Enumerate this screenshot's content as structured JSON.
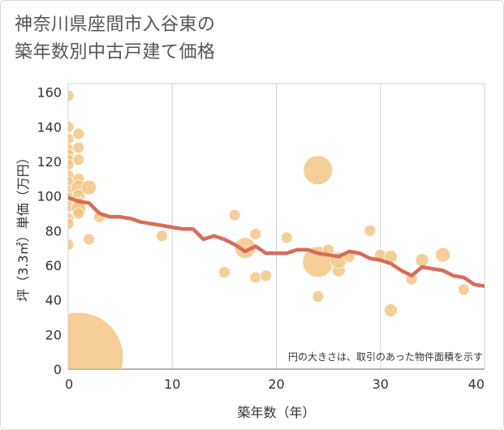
{
  "title_line1": "神奈川県座間市入谷東の",
  "title_line2": "築年数別中古戸建て価格",
  "chart_data": {
    "type": "scatter",
    "title": "神奈川県座間市入谷東の築年数別中古戸建て価格",
    "xlabel": "築年数（年）",
    "ylabel": "坪（3.3㎡）単価（万円）",
    "xlim": [
      0,
      40
    ],
    "ylim": [
      0,
      165
    ],
    "xticks": [
      "0",
      "10",
      "20",
      "30",
      "40"
    ],
    "yticks": [
      "0",
      "20",
      "40",
      "60",
      "80",
      "100",
      "120",
      "140",
      "160"
    ],
    "grid": true,
    "annotation": "円の大きさは、取引のあった物件面積を示す",
    "bubble_color": "#f2c27a",
    "line_color": "#d96b5b",
    "points": [
      {
        "x": 0,
        "y": 158,
        "s": 7
      },
      {
        "x": 0,
        "y": 140,
        "s": 7
      },
      {
        "x": 0,
        "y": 133,
        "s": 7
      },
      {
        "x": 0,
        "y": 127,
        "s": 7
      },
      {
        "x": 0,
        "y": 124,
        "s": 7
      },
      {
        "x": 0,
        "y": 121,
        "s": 7
      },
      {
        "x": 0,
        "y": 118,
        "s": 7
      },
      {
        "x": 0,
        "y": 112,
        "s": 7
      },
      {
        "x": 0,
        "y": 108,
        "s": 7
      },
      {
        "x": 0,
        "y": 103,
        "s": 7
      },
      {
        "x": 0,
        "y": 99,
        "s": 7
      },
      {
        "x": 0,
        "y": 94,
        "s": 7
      },
      {
        "x": 0,
        "y": 87,
        "s": 7
      },
      {
        "x": 0,
        "y": 84,
        "s": 7
      },
      {
        "x": 0,
        "y": 72,
        "s": 7
      },
      {
        "x": 1,
        "y": 136,
        "s": 7
      },
      {
        "x": 1,
        "y": 128,
        "s": 7
      },
      {
        "x": 1,
        "y": 121,
        "s": 7
      },
      {
        "x": 1,
        "y": 110,
        "s": 7
      },
      {
        "x": 1,
        "y": 105,
        "s": 9
      },
      {
        "x": 1,
        "y": 100,
        "s": 8
      },
      {
        "x": 1,
        "y": 96,
        "s": 7
      },
      {
        "x": 1,
        "y": 93,
        "s": 9
      },
      {
        "x": 1,
        "y": 90,
        "s": 7
      },
      {
        "x": 1,
        "y": 7,
        "s": 55
      },
      {
        "x": 2,
        "y": 105,
        "s": 9
      },
      {
        "x": 2,
        "y": 75,
        "s": 7
      },
      {
        "x": 3,
        "y": 88,
        "s": 7
      },
      {
        "x": 9,
        "y": 77,
        "s": 7
      },
      {
        "x": 15,
        "y": 56,
        "s": 7
      },
      {
        "x": 16,
        "y": 89,
        "s": 7
      },
      {
        "x": 17,
        "y": 70,
        "s": 13
      },
      {
        "x": 18,
        "y": 78,
        "s": 7
      },
      {
        "x": 18,
        "y": 53,
        "s": 7
      },
      {
        "x": 19,
        "y": 54,
        "s": 7
      },
      {
        "x": 21,
        "y": 76,
        "s": 7
      },
      {
        "x": 24,
        "y": 115,
        "s": 18
      },
      {
        "x": 24,
        "y": 62,
        "s": 19
      },
      {
        "x": 24,
        "y": 42,
        "s": 7
      },
      {
        "x": 25,
        "y": 69,
        "s": 7
      },
      {
        "x": 26,
        "y": 57,
        "s": 8
      },
      {
        "x": 26,
        "y": 63,
        "s": 10
      },
      {
        "x": 27,
        "y": 65,
        "s": 7
      },
      {
        "x": 29,
        "y": 80,
        "s": 7
      },
      {
        "x": 30,
        "y": 66,
        "s": 7
      },
      {
        "x": 31,
        "y": 65,
        "s": 8
      },
      {
        "x": 31,
        "y": 34,
        "s": 8
      },
      {
        "x": 33,
        "y": 52,
        "s": 7
      },
      {
        "x": 34,
        "y": 63,
        "s": 8
      },
      {
        "x": 36,
        "y": 66,
        "s": 9
      },
      {
        "x": 38,
        "y": 46,
        "s": 7
      }
    ],
    "trend": {
      "x": [
        0,
        1,
        2,
        3,
        4,
        5,
        6,
        7,
        8,
        9,
        10,
        11,
        12,
        13,
        14,
        15,
        16,
        17,
        18,
        19,
        20,
        21,
        22,
        23,
        24,
        25,
        26,
        27,
        28,
        29,
        30,
        31,
        32,
        33,
        34,
        35,
        36,
        37,
        38,
        39,
        40
      ],
      "y": [
        99,
        97,
        96,
        90,
        88,
        88,
        87,
        85,
        84,
        83,
        82,
        81,
        81,
        75,
        77,
        75,
        72,
        68,
        71,
        67,
        67,
        67,
        69,
        69,
        67,
        66,
        65,
        68,
        67,
        64,
        63,
        61,
        57,
        54,
        59,
        58,
        57,
        54,
        53,
        49,
        48
      ]
    }
  }
}
